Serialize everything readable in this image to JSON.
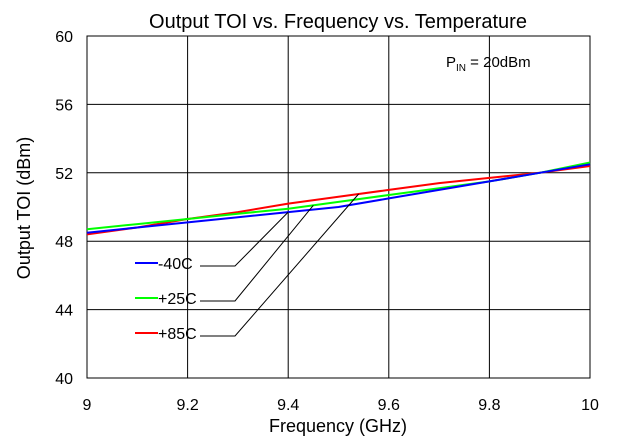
{
  "chart_data": {
    "type": "line",
    "title": "Output TOI vs. Frequency vs. Temperature",
    "xlabel": "Frequency (GHz)",
    "ylabel": "Output TOI (dBm)",
    "xlim": [
      9,
      10
    ],
    "ylim": [
      40,
      60
    ],
    "xticks": [
      9,
      9.2,
      9.4,
      9.6,
      9.8,
      10
    ],
    "xtick_labels": [
      "9",
      "9.2",
      "9.4",
      "9.6",
      "9.8",
      "10"
    ],
    "yticks": [
      40,
      44,
      48,
      52,
      56,
      60
    ],
    "ytick_labels": [
      "40",
      "44",
      "48",
      "52",
      "56",
      "60"
    ],
    "grid": true,
    "legend_position": "bottom-left",
    "annotation": {
      "main": "P",
      "sub": "IN",
      "rest": " = 20dBm"
    },
    "series": [
      {
        "name": "-40C",
        "color": "#0000ff",
        "x": [
          9.0,
          9.1,
          9.2,
          9.3,
          9.4,
          9.5,
          9.6,
          9.7,
          9.8,
          9.9,
          10.0
        ],
        "y": [
          48.5,
          48.8,
          49.1,
          49.4,
          49.7,
          50.0,
          50.5,
          51.0,
          51.5,
          52.0,
          52.5
        ]
      },
      {
        "name": "+25C",
        "color": "#00ff00",
        "x": [
          9.0,
          9.1,
          9.2,
          9.3,
          9.4,
          9.5,
          9.6,
          9.7,
          9.8,
          9.9,
          10.0
        ],
        "y": [
          48.7,
          49.0,
          49.3,
          49.6,
          49.9,
          50.3,
          50.7,
          51.1,
          51.5,
          52.0,
          52.6
        ]
      },
      {
        "name": "+85C",
        "color": "#ff0000",
        "x": [
          9.0,
          9.1,
          9.2,
          9.3,
          9.4,
          9.5,
          9.6,
          9.7,
          9.8,
          9.9,
          10.0
        ],
        "y": [
          48.4,
          48.8,
          49.3,
          49.7,
          50.2,
          50.6,
          51.0,
          51.4,
          51.7,
          52.0,
          52.4
        ]
      }
    ]
  }
}
